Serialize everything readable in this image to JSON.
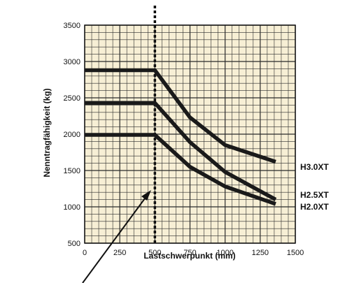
{
  "chart_data": {
    "type": "line",
    "title": "",
    "xlabel": "Lastschwerpunkt (mm)",
    "ylabel": "Nenntragfähigkeit (kg)",
    "xlim": [
      0,
      1500
    ],
    "ylim": [
      500,
      3500
    ],
    "x_ticks": [
      "0",
      "250",
      "500",
      "750",
      "1000",
      "1250",
      "1500"
    ],
    "y_ticks": [
      "500",
      "1000",
      "1500",
      "2000",
      "2500",
      "3000",
      "3500"
    ],
    "grid": true,
    "background_color": "#f7efd5",
    "grid_color": "#2a2a2a",
    "line_color": "#1a1a1a",
    "marker_line_x": 500,
    "series": [
      {
        "name": "H3.0XT",
        "x": [
          0,
          500,
          750,
          1000,
          1360
        ],
        "y": [
          2880,
          2880,
          2230,
          1850,
          1620
        ]
      },
      {
        "name": "H2.5XT",
        "x": [
          0,
          500,
          750,
          1000,
          1360
        ],
        "y": [
          2430,
          2430,
          1890,
          1480,
          1100
        ]
      },
      {
        "name": "H2.0XT",
        "x": [
          0,
          500,
          750,
          1000,
          1360
        ],
        "y": [
          1990,
          1990,
          1550,
          1280,
          1040
        ]
      }
    ]
  }
}
